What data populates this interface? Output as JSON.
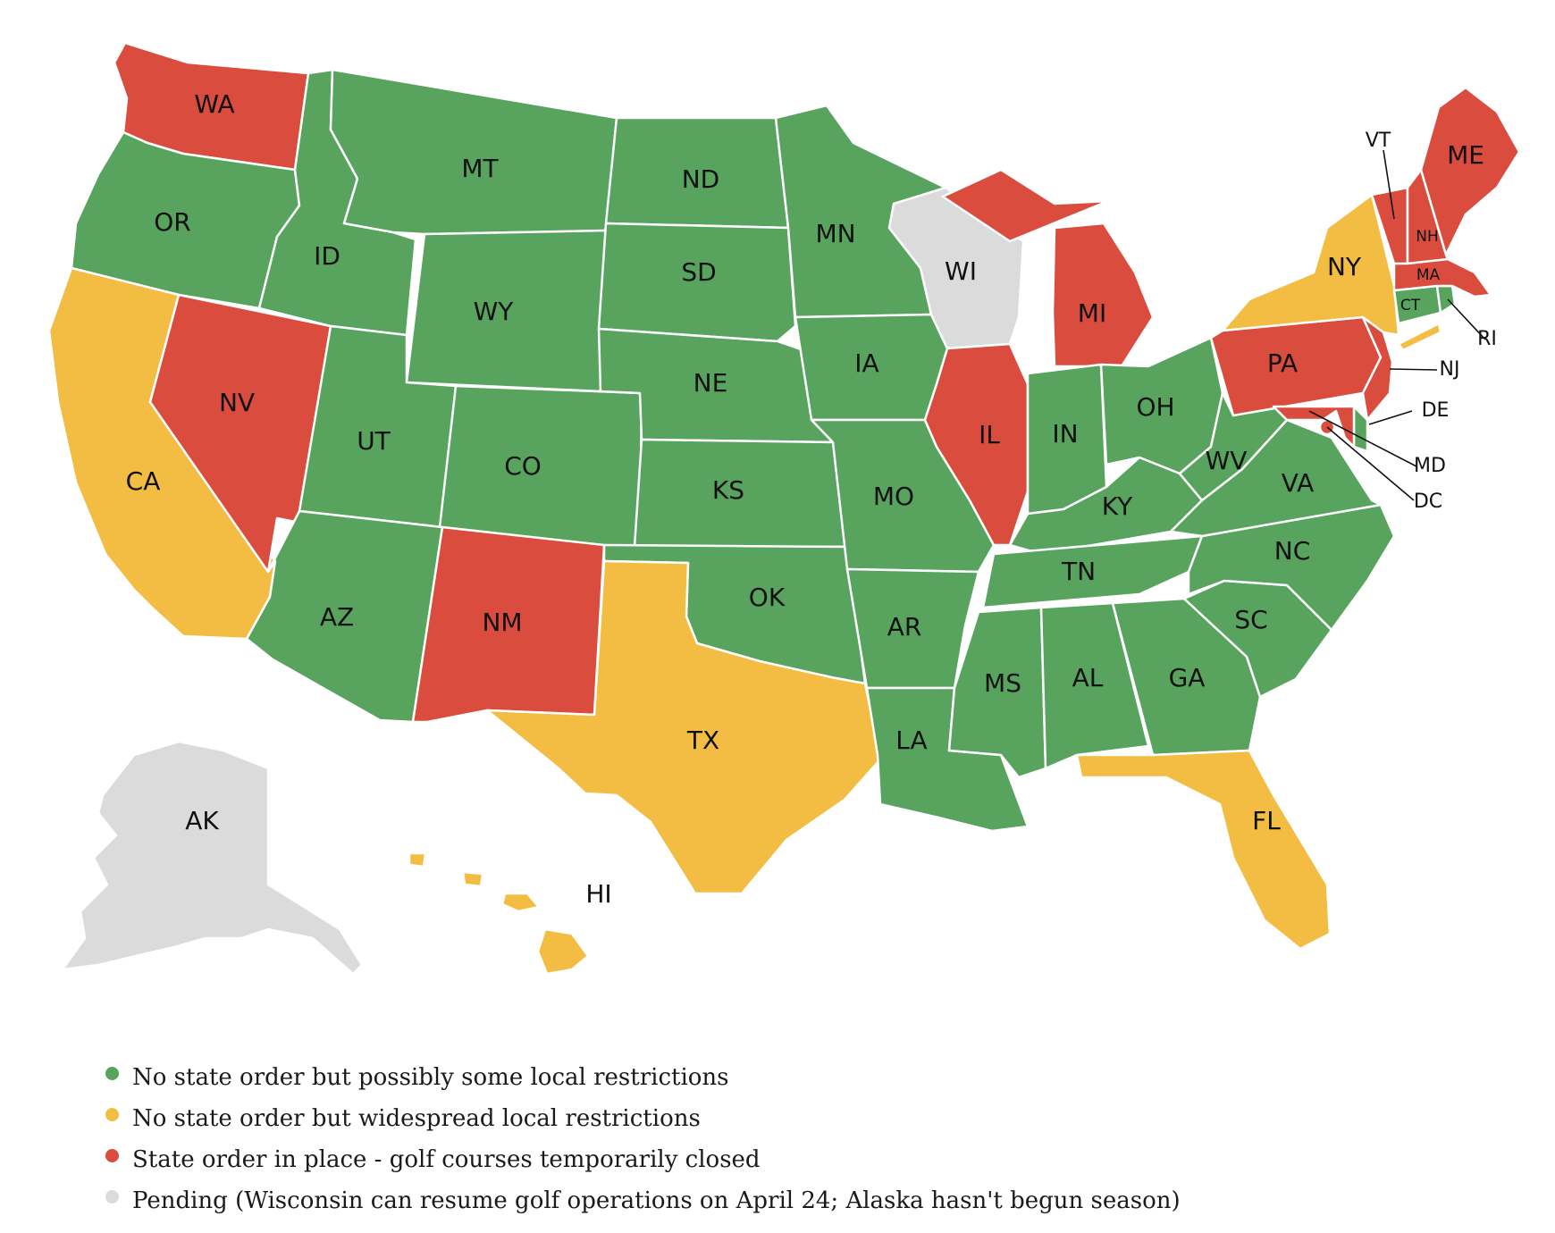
{
  "colors": {
    "green": "#58a35e",
    "yellow": "#f2bd42",
    "red": "#d94c3e",
    "gray": "#dbdbdb"
  },
  "states": {
    "WA": {
      "label": "WA",
      "status": "red"
    },
    "OR": {
      "label": "OR",
      "status": "green"
    },
    "CA": {
      "label": "CA",
      "status": "yellow"
    },
    "NV": {
      "label": "NV",
      "status": "red"
    },
    "ID": {
      "label": "ID",
      "status": "green"
    },
    "MT": {
      "label": "MT",
      "status": "green"
    },
    "WY": {
      "label": "WY",
      "status": "green"
    },
    "UT": {
      "label": "UT",
      "status": "green"
    },
    "AZ": {
      "label": "AZ",
      "status": "green"
    },
    "CO": {
      "label": "CO",
      "status": "green"
    },
    "NM": {
      "label": "NM",
      "status": "red"
    },
    "ND": {
      "label": "ND",
      "status": "green"
    },
    "SD": {
      "label": "SD",
      "status": "green"
    },
    "NE": {
      "label": "NE",
      "status": "green"
    },
    "KS": {
      "label": "KS",
      "status": "green"
    },
    "OK": {
      "label": "OK",
      "status": "green"
    },
    "TX": {
      "label": "TX",
      "status": "yellow"
    },
    "MN": {
      "label": "MN",
      "status": "green"
    },
    "IA": {
      "label": "IA",
      "status": "green"
    },
    "MO": {
      "label": "MO",
      "status": "green"
    },
    "AR": {
      "label": "AR",
      "status": "green"
    },
    "LA": {
      "label": "LA",
      "status": "green"
    },
    "WI": {
      "label": "WI",
      "status": "gray"
    },
    "IL": {
      "label": "IL",
      "status": "red"
    },
    "MI": {
      "label": "MI",
      "status": "red"
    },
    "IN": {
      "label": "IN",
      "status": "green"
    },
    "OH": {
      "label": "OH",
      "status": "green"
    },
    "KY": {
      "label": "KY",
      "status": "green"
    },
    "TN": {
      "label": "TN",
      "status": "green"
    },
    "MS": {
      "label": "MS",
      "status": "green"
    },
    "AL": {
      "label": "AL",
      "status": "green"
    },
    "GA": {
      "label": "GA",
      "status": "green"
    },
    "FL": {
      "label": "FL",
      "status": "yellow"
    },
    "SC": {
      "label": "SC",
      "status": "green"
    },
    "NC": {
      "label": "NC",
      "status": "green"
    },
    "VA": {
      "label": "VA",
      "status": "green"
    },
    "WV": {
      "label": "WV",
      "status": "green"
    },
    "PA": {
      "label": "PA",
      "status": "red"
    },
    "NY": {
      "label": "NY",
      "status": "yellow"
    },
    "NJ": {
      "label": "NJ",
      "status": "red"
    },
    "DE": {
      "label": "DE",
      "status": "green"
    },
    "MD": {
      "label": "MD",
      "status": "red"
    },
    "DC": {
      "label": "DC",
      "status": "red"
    },
    "CT": {
      "label": "CT",
      "status": "green"
    },
    "RI": {
      "label": "RI",
      "status": "green"
    },
    "MA": {
      "label": "MA",
      "status": "red"
    },
    "VT": {
      "label": "VT",
      "status": "red"
    },
    "NH": {
      "label": "NH",
      "status": "red"
    },
    "ME": {
      "label": "ME",
      "status": "red"
    },
    "AK": {
      "label": "AK",
      "status": "gray"
    },
    "HI": {
      "label": "HI",
      "status": "yellow"
    }
  },
  "legend": [
    {
      "color": "green",
      "text": "No state order but possibly some local restrictions"
    },
    {
      "color": "yellow",
      "text": "No state order but widespread local restrictions"
    },
    {
      "color": "red",
      "text": "State order in place - golf courses temporarily closed"
    },
    {
      "color": "gray",
      "text": "Pending (Wisconsin can resume golf operations on April 24; Alaska hasn't begun season)"
    }
  ]
}
